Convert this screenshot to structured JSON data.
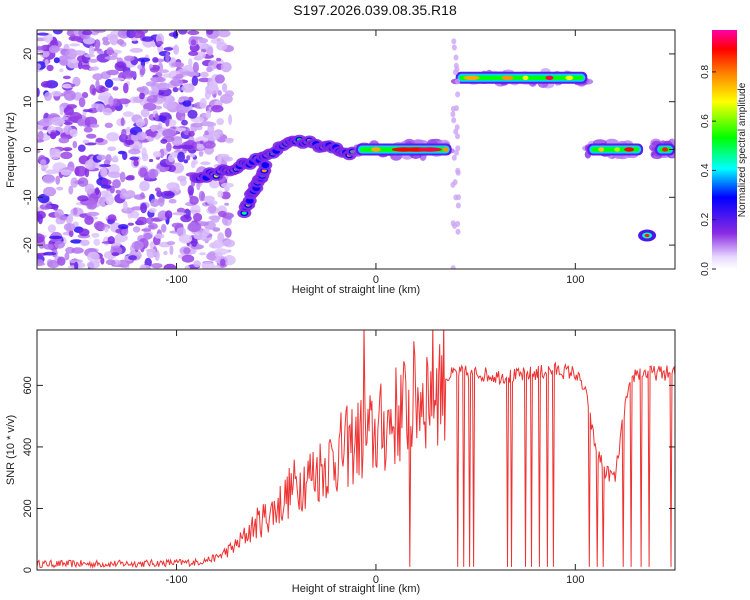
{
  "title": "S197.2026.039.08.35.R18",
  "chart_data": [
    {
      "type": "heatmap",
      "name": "spectrogram",
      "xlabel": "Height of straight line (km)",
      "ylabel": "Frequency (Hz)",
      "xlim": [
        -170,
        150
      ],
      "ylim": [
        -25,
        25
      ],
      "xticks": [
        -100,
        0,
        100
      ],
      "yticks": [
        -20,
        -10,
        0,
        10,
        20
      ],
      "colorbar": {
        "label": "Normalized spectral amplitude",
        "range": [
          0,
          0.97
        ],
        "ticks": [
          "0.0",
          "0.2",
          "0.4",
          "0.6",
          "0.8"
        ],
        "tick_values": [
          0,
          0.2,
          0.4,
          0.6,
          0.8
        ]
      },
      "features": [
        {
          "label": "noise region",
          "x_range": [
            -170,
            -83
          ],
          "freq_range": [
            -25,
            25
          ],
          "amplitude": 0.12
        },
        {
          "label": "rising ridge",
          "x": [
            -90,
            -80,
            -70,
            -60,
            -50,
            -40,
            -30,
            -20,
            -10
          ],
          "freq": [
            -6,
            -5,
            -4,
            -2,
            0,
            2,
            1,
            0,
            -1
          ],
          "amplitude": 0.35
        },
        {
          "label": "ridge arm",
          "x": [
            -66,
            -62,
            -58,
            -55
          ],
          "freq": [
            -13,
            -9,
            -6,
            -3
          ],
          "amplitude": 0.4
        },
        {
          "label": "main line",
          "x_range": [
            -10,
            38
          ],
          "freq": 0,
          "amplitude": 0.95
        },
        {
          "label": "upper line",
          "x_range": [
            40,
            106
          ],
          "freq": 15,
          "amplitude": 0.7
        },
        {
          "label": "right line",
          "x_range": [
            106,
            150
          ],
          "freq": 0,
          "amplitude": 0.6
        },
        {
          "label": "isolated blob",
          "x": 136,
          "freq": -18,
          "amplitude": 0.7
        }
      ]
    },
    {
      "type": "line",
      "name": "snr",
      "xlabel": "Height of straight line (km)",
      "ylabel": "SNR (10 * v/v)",
      "xlim": [
        -170,
        150
      ],
      "ylim": [
        0,
        780
      ],
      "xticks": [
        -100,
        0,
        100
      ],
      "yticks": [
        0,
        200,
        400,
        600
      ],
      "color": "#ee3333",
      "series": [
        {
          "name": "SNR",
          "x": [
            -170,
            -150,
            -130,
            -110,
            -90,
            -80,
            -70,
            -60,
            -50,
            -40,
            -30,
            -20,
            -10,
            0,
            10,
            20,
            30,
            40,
            50,
            60,
            70,
            80,
            90,
            100,
            105,
            110,
            115,
            120,
            125,
            130,
            140,
            150
          ],
          "y": [
            20,
            20,
            20,
            22,
            25,
            40,
            80,
            150,
            200,
            280,
            320,
            370,
            420,
            440,
            500,
            560,
            610,
            640,
            640,
            630,
            630,
            640,
            650,
            640,
            580,
            400,
            320,
            300,
            540,
            640,
            640,
            640
          ]
        }
      ]
    }
  ]
}
